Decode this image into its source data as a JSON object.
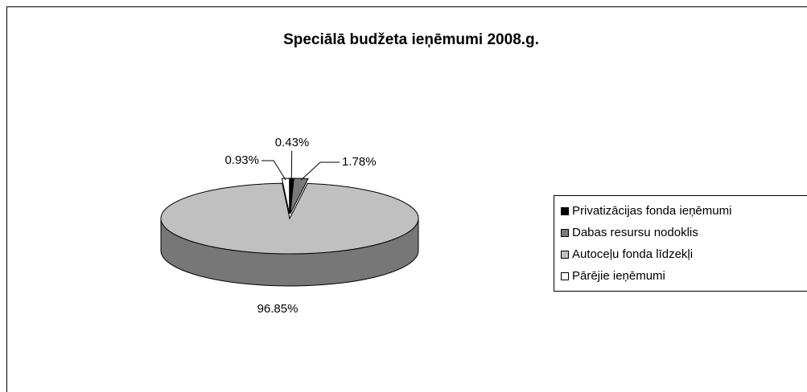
{
  "chart_data": {
    "type": "pie3d",
    "title": "Speciālā budžeta ieņēmumi 2008.g.",
    "categories": [
      "Privatizācijas fonda ieņēmumi",
      "Dabas resursu nodoklis",
      "Autoceļu fonda līdzekļi",
      "Pārējie ieņēmumi"
    ],
    "values": [
      0.43,
      1.78,
      96.85,
      0.93
    ],
    "value_labels": [
      "0.43%",
      "1.78%",
      "96.85%",
      "0.93%"
    ],
    "colors": [
      "#000000",
      "#7a7a7a",
      "#c0c0c0",
      "#ffffff"
    ],
    "legend": "right"
  }
}
